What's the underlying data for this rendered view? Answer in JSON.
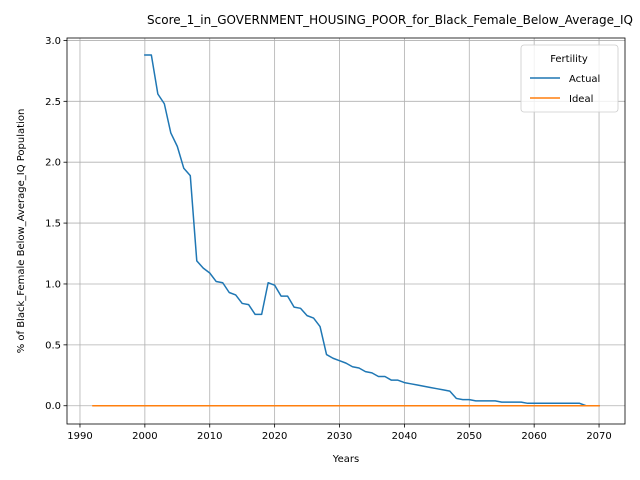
{
  "chart_data": {
    "type": "line",
    "title": "Score_1_in_GOVERNMENT_HOUSING_POOR_for_Black_Female_Below_Average_IQ",
    "xlabel": "Years",
    "ylabel": "% of Black_Female Below_Average_IQ Population",
    "xlim": [
      1988,
      2074
    ],
    "ylim": [
      -0.15,
      3.02
    ],
    "xticks": [
      1990,
      2000,
      2010,
      2020,
      2030,
      2040,
      2050,
      2060,
      2070
    ],
    "yticks": [
      0.0,
      0.5,
      1.0,
      1.5,
      2.0,
      2.5,
      3.0
    ],
    "xtick_labels": [
      "1990",
      "2000",
      "2010",
      "2020",
      "2030",
      "2040",
      "2050",
      "2060",
      "2070"
    ],
    "ytick_labels": [
      "0.0",
      "0.5",
      "1.0",
      "1.5",
      "2.0",
      "2.5",
      "3.0"
    ],
    "grid": true,
    "legend": {
      "title": "Fertility",
      "placement": "top-right"
    },
    "series": [
      {
        "name": "Actual",
        "color": "#1f77b4",
        "x": [
          2000,
          2001,
          2002,
          2003,
          2004,
          2005,
          2006,
          2007,
          2008,
          2009,
          2010,
          2011,
          2012,
          2013,
          2014,
          2015,
          2016,
          2017,
          2018,
          2019,
          2020,
          2021,
          2022,
          2023,
          2024,
          2025,
          2026,
          2027,
          2028,
          2029,
          2030,
          2031,
          2032,
          2033,
          2034,
          2035,
          2036,
          2037,
          2038,
          2039,
          2040,
          2041,
          2042,
          2043,
          2044,
          2045,
          2046,
          2047,
          2048,
          2049,
          2050,
          2051,
          2052,
          2053,
          2054,
          2055,
          2056,
          2057,
          2058,
          2059,
          2060,
          2061,
          2062,
          2063,
          2064,
          2065,
          2066,
          2067,
          2068,
          2069,
          2070
        ],
        "y": [
          2.88,
          2.88,
          2.56,
          2.48,
          2.24,
          2.13,
          1.95,
          1.89,
          1.19,
          1.13,
          1.09,
          1.02,
          1.01,
          0.93,
          0.91,
          0.84,
          0.83,
          0.75,
          0.75,
          1.01,
          0.99,
          0.9,
          0.9,
          0.81,
          0.8,
          0.74,
          0.72,
          0.65,
          0.42,
          0.39,
          0.37,
          0.35,
          0.32,
          0.31,
          0.28,
          0.27,
          0.24,
          0.24,
          0.21,
          0.21,
          0.19,
          0.18,
          0.17,
          0.16,
          0.15,
          0.14,
          0.13,
          0.12,
          0.06,
          0.05,
          0.05,
          0.04,
          0.04,
          0.04,
          0.04,
          0.03,
          0.03,
          0.03,
          0.03,
          0.02,
          0.02,
          0.02,
          0.02,
          0.02,
          0.02,
          0.02,
          0.02,
          0.02,
          0.0,
          0.0,
          0.0
        ]
      },
      {
        "name": "Ideal",
        "color": "#ff7f0e",
        "x": [
          1992,
          2070
        ],
        "y": [
          0.0,
          0.0
        ]
      }
    ]
  }
}
